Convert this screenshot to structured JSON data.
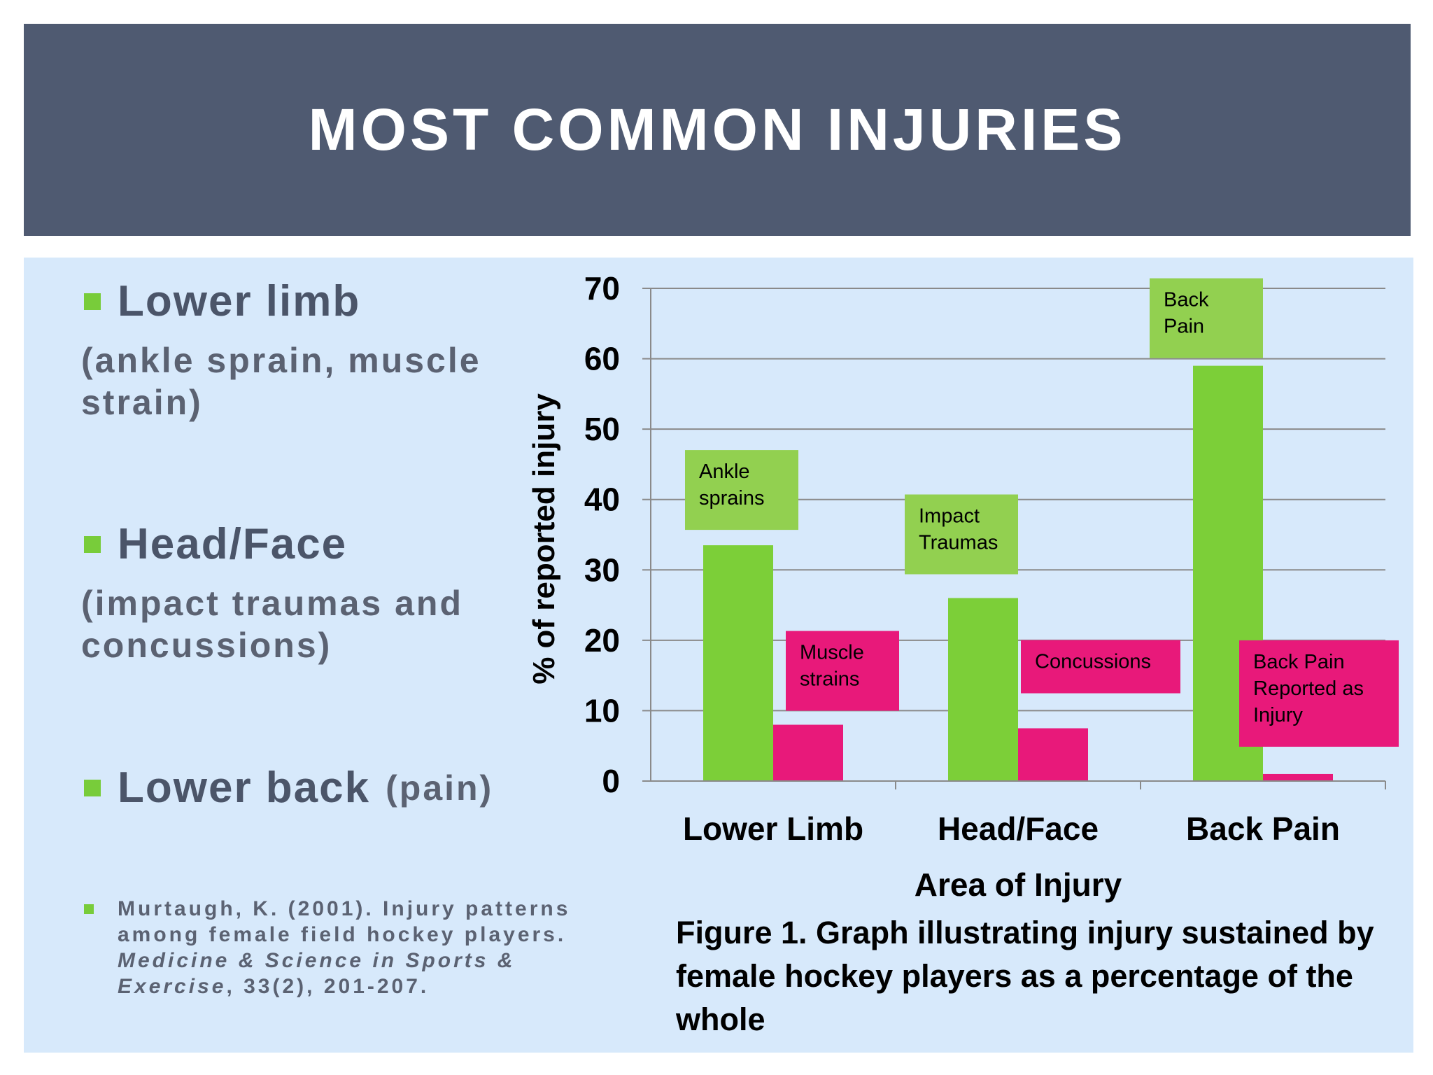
{
  "title": "MOST COMMON INJURIES",
  "bullets": [
    {
      "head": "Lower limb",
      "head_suffix": "",
      "sub": "(ankle sprain, muscle strain)"
    },
    {
      "head": "Head/Face",
      "head_suffix": "",
      "sub": "(impact traumas and concussions)"
    },
    {
      "head": "Lower back",
      "head_suffix": "(pain)",
      "sub": ""
    }
  ],
  "citation": {
    "text1": "Murtaugh, K. (2001). Injury patterns among female field hockey players.",
    "journal": "Medicine & Science in Sports & Exercise",
    "text2": ", 33(2), 201-207."
  },
  "caption": "Figure 1. Graph illustrating injury sustained by female hockey players as a percentage of the whole",
  "colors": {
    "green": "#7ccf38",
    "pink": "#e8197a",
    "label_green": "#92d050"
  },
  "chart_data": {
    "type": "bar",
    "categories": [
      "Lower Limb",
      "Head/Face",
      "Back Pain"
    ],
    "series": [
      {
        "values": [
          33.5,
          26,
          59
        ],
        "color": "#7ccf38"
      },
      {
        "values": [
          8,
          7.5,
          1
        ],
        "color": "#e8197a"
      }
    ],
    "ylabel": "% of reported injury",
    "xlabel": "Area of Injury",
    "ylim": [
      0,
      70
    ],
    "yticks": [
      0,
      10,
      20,
      30,
      40,
      50,
      60,
      70
    ],
    "grid": true,
    "annotations": [
      {
        "text": [
          "Ankle",
          "sprains"
        ],
        "color": "#92d050",
        "category": 0,
        "series": 0
      },
      {
        "text": [
          "Muscle",
          "strains"
        ],
        "color": "#e8197a",
        "category": 0,
        "series": 1
      },
      {
        "text": [
          "Impact",
          "Traumas"
        ],
        "color": "#92d050",
        "category": 1,
        "series": 0
      },
      {
        "text": [
          "Concussions"
        ],
        "color": "#e8197a",
        "category": 1,
        "series": 1
      },
      {
        "text": [
          "Back",
          "Pain"
        ],
        "color": "#92d050",
        "category": 2,
        "series": 0
      },
      {
        "text": [
          "Back Pain",
          "Reported as",
          "Injury"
        ],
        "color": "#e8197a",
        "category": 2,
        "series": 1
      }
    ]
  }
}
